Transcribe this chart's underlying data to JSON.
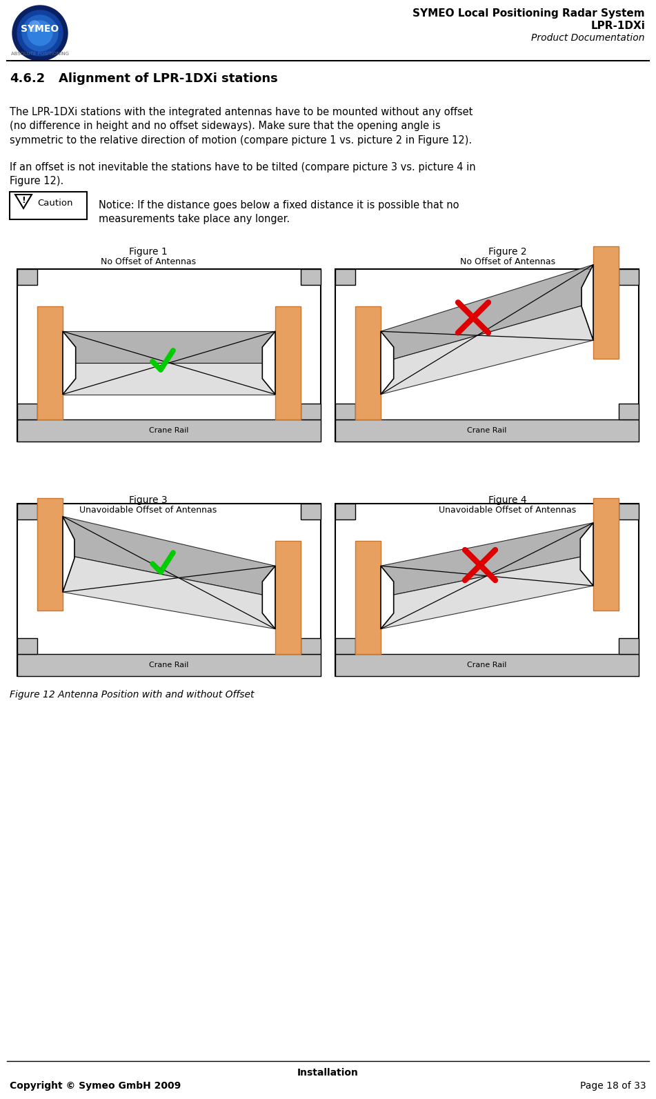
{
  "title_line1": "SYMEO Local Positioning Radar System",
  "title_line2": "LPR-1DXi",
  "title_line3": "Product Documentation",
  "section": "4.6.2",
  "section_title": "Alignment of LPR-1DXi stations",
  "body_text1": "The LPR-1DXi stations with the integrated antennas have to be mounted without any offset\n(no difference in height and no offset sideways). Make sure that the opening angle is\nsymmetric to the relative direction of motion (compare picture 1 vs. picture 2 in Figure 12).",
  "body_text2": "If an offset is not inevitable the stations have to be tilted (compare picture 3 vs. picture 4 in\nFigure 12).",
  "notice_text": "Notice: If the distance goes below a fixed distance it is possible that no\nmeasurements take place any longer.",
  "fig1_title": "Figure 1",
  "fig1_sub": "No Offset of Antennas",
  "fig2_title": "Figure 2",
  "fig2_sub": "No Offset of Antennas",
  "fig3_title": "Figure 3",
  "fig3_sub": "Unavoidable Offset of Antennas",
  "fig4_title": "Figure 4",
  "fig4_sub": "Unavoidable Offset of Antennas",
  "crane_rail": "Crane Rail",
  "figure_caption": "Figure 12 Antenna Position with and without Offset",
  "footer_center": "Installation",
  "footer_left": "Copyright © Symeo GmbH 2009",
  "footer_right": "Page 18 of 33",
  "bg_color": "#ffffff",
  "orange_pillar": "#E8A060",
  "orange_pillar_dark": "#C87830",
  "gray_rail": "#C0C0C0",
  "gray_beam_light": "#D8D8D8",
  "gray_beam_dark": "#A0A0A0",
  "gray_face": "#E8E8E8"
}
